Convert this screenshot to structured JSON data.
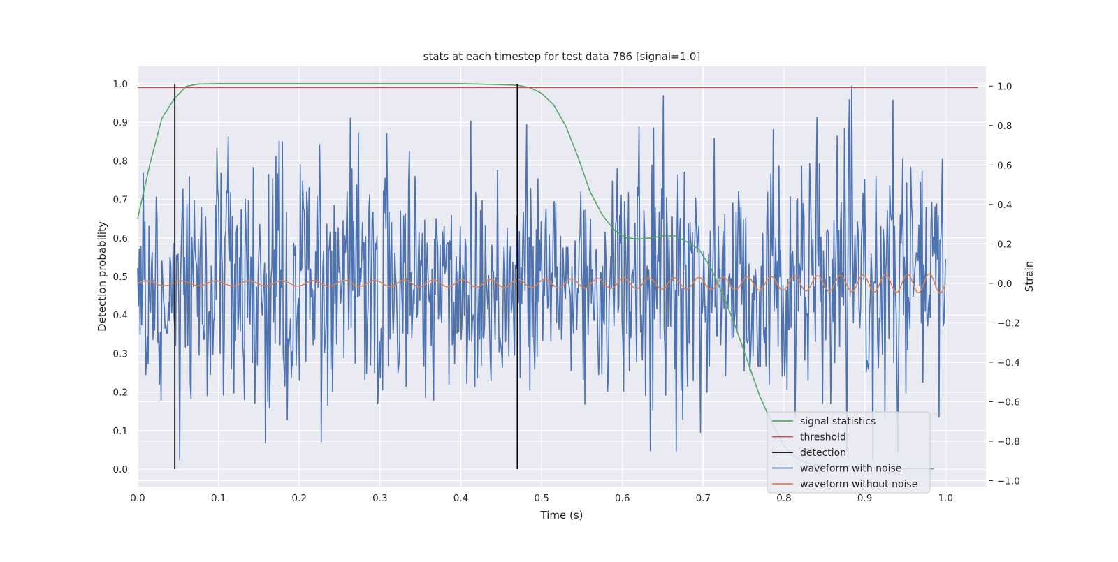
{
  "chart_data": {
    "type": "line",
    "title": "stats at each timestep for test data 786 [signal=1.0]",
    "xlabel": "Time (s)",
    "ylabel": "Detection probability",
    "ylabel_right": "Strain",
    "xlim": [
      0.0,
      1.05
    ],
    "ylim": [
      -0.045,
      1.045
    ],
    "ylim_right": [
      -1.03,
      1.1
    ],
    "x_ticks": [
      "0.0",
      "0.1",
      "0.2",
      "0.3",
      "0.4",
      "0.5",
      "0.6",
      "0.7",
      "0.8",
      "0.9",
      "1.0"
    ],
    "y_ticks": [
      "0.0",
      "0.1",
      "0.2",
      "0.3",
      "0.4",
      "0.5",
      "0.6",
      "0.7",
      "0.8",
      "0.9",
      "1.0"
    ],
    "y_ticks_right": [
      "−1.0",
      "−0.8",
      "−0.6",
      "−0.4",
      "−0.2",
      "0.0",
      "0.2",
      "0.4",
      "0.6",
      "0.8",
      "1.0"
    ],
    "grid": true,
    "legend_position": "lower-right",
    "colors": {
      "background": "#eaeaf2",
      "grid": "#ffffff",
      "signal": "#55a868",
      "threshold": "#c44e52",
      "detection": "#000000",
      "noise": "#4c72b0",
      "clean": "#dd8452"
    },
    "series": [
      {
        "name": "signal statistics",
        "axis": "left",
        "x": [
          0.0,
          0.015,
          0.03,
          0.045,
          0.06,
          0.075,
          0.1,
          0.2,
          0.3,
          0.4,
          0.44,
          0.47,
          0.485,
          0.5,
          0.515,
          0.53,
          0.545,
          0.56,
          0.575,
          0.59,
          0.605,
          0.62,
          0.635,
          0.65,
          0.665,
          0.68,
          0.695,
          0.71,
          0.725,
          0.74,
          0.755,
          0.77,
          0.785,
          0.8,
          0.815,
          0.83,
          0.845,
          0.86,
          0.875,
          0.89,
          0.905,
          0.92,
          0.935,
          0.95,
          0.965,
          0.98,
          0.985
        ],
        "y": [
          0.65,
          0.79,
          0.91,
          0.96,
          0.993,
          0.999,
          1.0,
          1.0,
          1.0,
          1.0,
          0.998,
          0.996,
          0.99,
          0.975,
          0.945,
          0.89,
          0.81,
          0.72,
          0.66,
          0.62,
          0.6,
          0.597,
          0.6,
          0.605,
          0.605,
          0.59,
          0.57,
          0.52,
          0.45,
          0.37,
          0.28,
          0.19,
          0.12,
          0.06,
          0.03,
          0.015,
          0.01,
          0.008,
          0.005,
          0.004,
          0.003,
          0.002,
          0.002,
          0.001,
          0.001,
          0.001,
          0.001
        ]
      },
      {
        "name": "threshold",
        "axis": "left",
        "x": [
          0.0,
          1.04
        ],
        "y": [
          0.99,
          0.99
        ]
      },
      {
        "name": "detection",
        "axis": "left",
        "segments": [
          {
            "x": 0.046,
            "y": [
              0.0,
              1.0
            ]
          },
          {
            "x": 0.47,
            "y": [
              0.0,
              1.0
            ]
          }
        ]
      },
      {
        "name": "waveform with noise",
        "axis": "right",
        "x_range": [
          0.0,
          1.0
        ],
        "n_points": 1000,
        "y_range": [
          -0.95,
          1.0
        ],
        "std": 0.32
      },
      {
        "name": "waveform without noise",
        "axis": "right",
        "x_range": [
          0.0,
          1.0
        ],
        "amplitude_start": 0.012,
        "amplitude_end": 0.05,
        "cycles": 30
      }
    ]
  }
}
